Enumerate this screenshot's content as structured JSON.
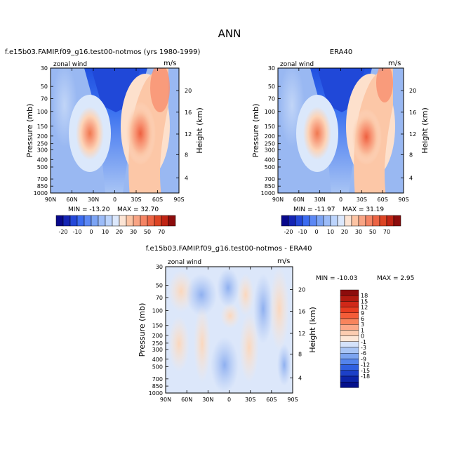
{
  "figure": {
    "title": "ANN"
  },
  "chart_data": [
    {
      "type": "heatmap",
      "title": "f.e15b03.FAMIP.f09_g16.test00-notmos (yrs 1980-1999)",
      "variable": "zonal wind",
      "units": "m/s",
      "xlabel": "",
      "ylabel": "Pressure (mb)",
      "y2label": "Height (km)",
      "x_ticks": [
        "90N",
        "60N",
        "30N",
        "0",
        "30S",
        "60S",
        "90S"
      ],
      "y_ticks": [
        "30",
        "50",
        "70",
        "100",
        "150",
        "200",
        "250",
        "300",
        "400",
        "500",
        "700",
        "850",
        "1000"
      ],
      "y2_ticks": [
        "4",
        "8",
        "12",
        "16",
        "20"
      ],
      "min_label": "MIN = -13.20",
      "max_label": "MAX =  32.70",
      "min": -13.2,
      "max": 32.7,
      "colorbar": {
        "orientation": "horizontal",
        "labels": [
          "-20",
          "-10",
          "0",
          "10",
          "20",
          "30",
          "50",
          "70"
        ]
      }
    },
    {
      "type": "heatmap",
      "title": "ERA40",
      "variable": "zonal wind",
      "units": "m/s",
      "xlabel": "",
      "ylabel": "Pressure (mb)",
      "y2label": "Height (km)",
      "x_ticks": [
        "90N",
        "60N",
        "30N",
        "0",
        "30S",
        "60S",
        "90S"
      ],
      "y_ticks": [
        "30",
        "50",
        "70",
        "100",
        "150",
        "200",
        "250",
        "300",
        "400",
        "500",
        "700",
        "850",
        "1000"
      ],
      "y2_ticks": [
        "4",
        "8",
        "12",
        "16",
        "20"
      ],
      "min_label": "MIN = -11.97",
      "max_label": "MAX =  31.19",
      "min": -11.97,
      "max": 31.19,
      "colorbar": {
        "orientation": "horizontal",
        "labels": [
          "-20",
          "-10",
          "0",
          "10",
          "20",
          "30",
          "50",
          "70"
        ]
      }
    },
    {
      "type": "heatmap",
      "title": "f.e15b03.FAMIP.f09_g16.test00-notmos - ERA40",
      "variable": "zonal wind",
      "units": "m/s",
      "xlabel": "",
      "ylabel": "Pressure (mb)",
      "y2label": "Height (km)",
      "x_ticks": [
        "90N",
        "60N",
        "30N",
        "0",
        "30S",
        "60S",
        "90S"
      ],
      "y_ticks": [
        "30",
        "50",
        "70",
        "100",
        "150",
        "200",
        "250",
        "300",
        "400",
        "500",
        "700",
        "850",
        "1000"
      ],
      "y2_ticks": [
        "4",
        "8",
        "12",
        "16",
        "20"
      ],
      "min_label": "MIN = -10.03",
      "max_label": "MAX =   2.95",
      "min": -10.03,
      "max": 2.95,
      "colorbar": {
        "orientation": "vertical",
        "labels": [
          "18",
          "15",
          "12",
          "9",
          "6",
          "3",
          "1",
          "0",
          "-1",
          "-3",
          "-6",
          "-9",
          "-12",
          "-15",
          "-18"
        ]
      }
    }
  ]
}
